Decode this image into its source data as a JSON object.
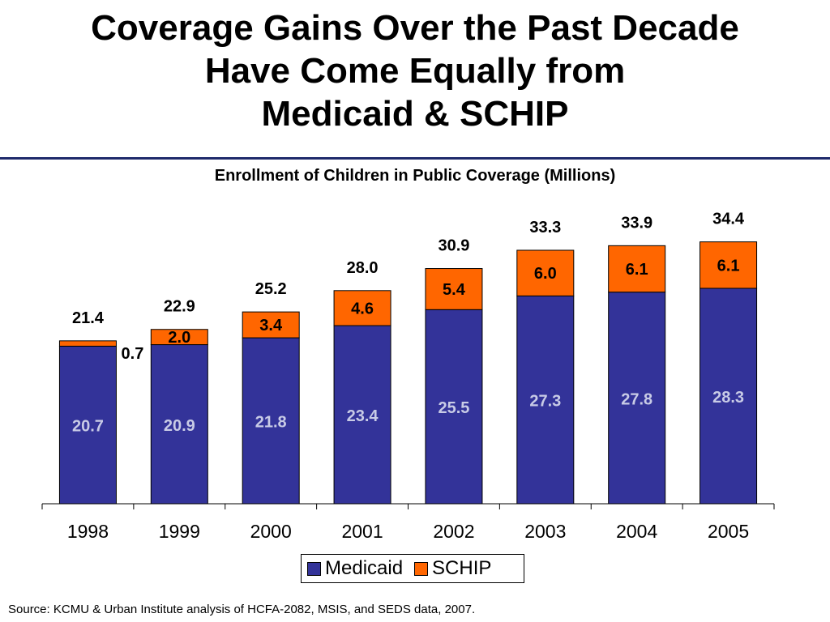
{
  "title_lines": [
    "Coverage Gains Over the Past Decade",
    "Have Come Equally from",
    "Medicaid & SCHIP"
  ],
  "source": "Source:  KCMU & Urban Institute analysis of HCFA-2082, MSIS, and SEDS data, 2007.",
  "colors": {
    "medicaid": "#333399",
    "schip": "#ff6600",
    "rule": "#1f2a6b"
  },
  "chart_data": {
    "type": "bar",
    "stacked": true,
    "title": "Enrollment of Children in Public Coverage (Millions)",
    "xlabel": "",
    "ylabel": "",
    "ylim": [
      0,
      40
    ],
    "grid": false,
    "legend_position": "bottom",
    "categories": [
      "1998",
      "1999",
      "2000",
      "2001",
      "2002",
      "2003",
      "2004",
      "2005"
    ],
    "series": [
      {
        "name": "Medicaid",
        "values": [
          20.7,
          20.9,
          21.8,
          23.4,
          25.5,
          27.3,
          27.8,
          28.3
        ],
        "labels": [
          "20.7",
          "20.9",
          "21.8",
          "23.4",
          "25.5",
          "27.3",
          "27.8",
          "28.3"
        ]
      },
      {
        "name": "SCHIP",
        "values": [
          0.7,
          2.0,
          3.4,
          4.6,
          5.4,
          6.0,
          6.1,
          6.1
        ],
        "labels": [
          "0.7",
          "2.0",
          "3.4",
          "4.6",
          "5.4",
          "6.0",
          "6.1",
          "6.1"
        ]
      }
    ],
    "totals": [
      21.4,
      22.9,
      25.2,
      28.0,
      30.9,
      33.3,
      33.9,
      34.4
    ],
    "total_labels": [
      "21.4",
      "22.9",
      "25.2",
      "28.0",
      "30.9",
      "33.3",
      "33.9",
      "34.4"
    ]
  }
}
